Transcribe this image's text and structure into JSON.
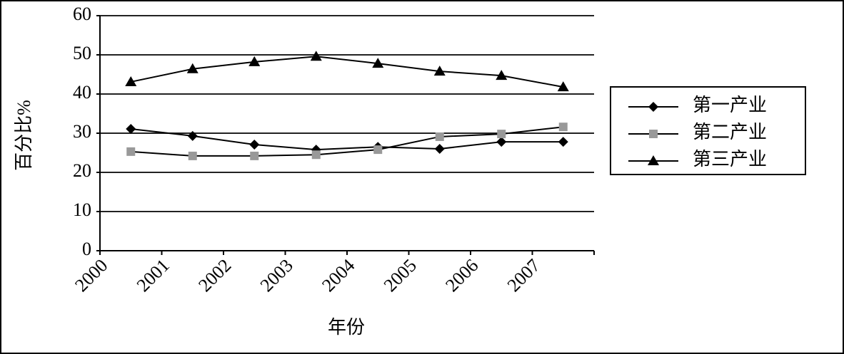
{
  "chart_data": {
    "type": "line",
    "x_label": "年份",
    "y_label": "百分比%",
    "categories": [
      "2000",
      "2001",
      "2002",
      "2003",
      "2004",
      "2005",
      "2006",
      "2007"
    ],
    "series": [
      {
        "name": "第一产业",
        "color": "#000000",
        "marker": "diamond",
        "values": [
          31.1,
          29.3,
          27.1,
          25.8,
          26.5,
          26.0,
          27.8,
          27.8
        ]
      },
      {
        "name": "第二产业",
        "color": "#999999",
        "marker": "square",
        "values": [
          25.3,
          24.2,
          24.2,
          24.5,
          25.8,
          29.1,
          29.8,
          31.6
        ]
      },
      {
        "name": "第三产业",
        "color": "#000000",
        "marker": "triangle",
        "values": [
          43.1,
          46.4,
          48.2,
          49.6,
          47.8,
          45.8,
          44.7,
          41.8
        ]
      }
    ],
    "ylim": [
      0,
      60
    ],
    "yticks": [
      0,
      10,
      20,
      30,
      40,
      50,
      60
    ],
    "grid": true,
    "legend": "right"
  }
}
